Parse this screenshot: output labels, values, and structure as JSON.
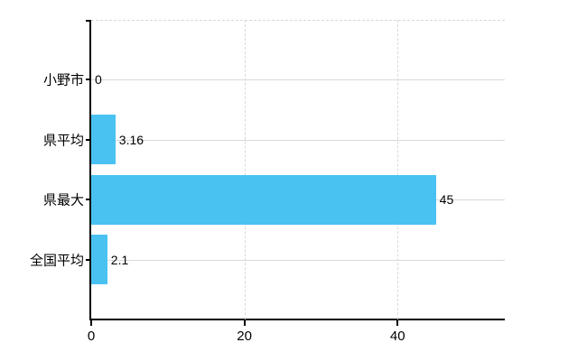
{
  "chart_data": {
    "type": "bar",
    "orientation": "horizontal",
    "title": "",
    "xlabel": "",
    "ylabel": "",
    "categories": [
      "小野市",
      "県平均",
      "県最大",
      "全国平均"
    ],
    "values": [
      0,
      3.16,
      45,
      2.1
    ],
    "value_labels": [
      "0",
      "3.16",
      "45",
      "2.1"
    ],
    "xlim": [
      0,
      54
    ],
    "x_ticks": [
      0,
      20,
      40
    ],
    "x_tick_labels": [
      "0",
      "20",
      "40"
    ],
    "grid": "on",
    "legend": "none",
    "colors": {
      "bar": "#49c2f2",
      "grid_solid": "#d9d9d9",
      "grid_dashed": "#d9d9d9",
      "axis": "#000000",
      "text": "#000000",
      "background": "#ffffff"
    }
  }
}
